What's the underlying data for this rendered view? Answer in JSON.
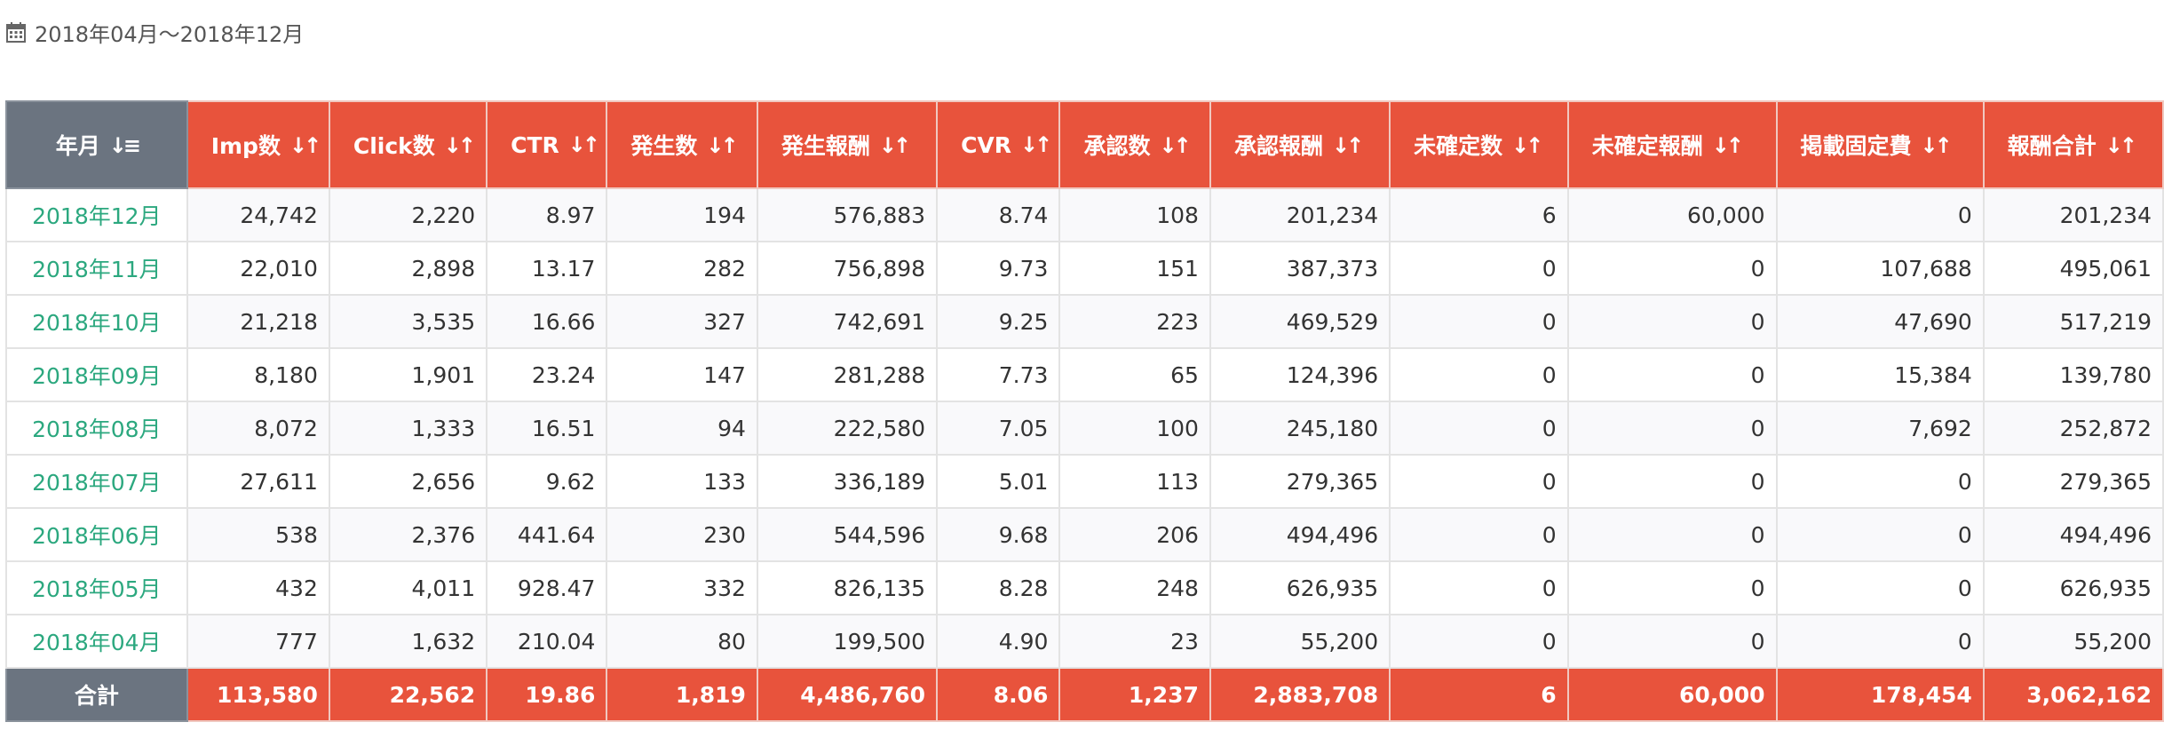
{
  "period": {
    "icon": "calendar-icon",
    "label": "2018年04月～2018年12月"
  },
  "table": {
    "headers": [
      {
        "label": "年月",
        "sort_icon": "sort-desc-icon"
      },
      {
        "label": "Imp数",
        "sort_icon": "sort-icon"
      },
      {
        "label": "Click数",
        "sort_icon": "sort-icon"
      },
      {
        "label": "CTR",
        "sort_icon": "sort-icon"
      },
      {
        "label": "発生数",
        "sort_icon": "sort-icon"
      },
      {
        "label": "発生報酬",
        "sort_icon": "sort-icon"
      },
      {
        "label": "CVR",
        "sort_icon": "sort-icon"
      },
      {
        "label": "承認数",
        "sort_icon": "sort-icon"
      },
      {
        "label": "承認報酬",
        "sort_icon": "sort-icon"
      },
      {
        "label": "未確定数",
        "sort_icon": "sort-icon"
      },
      {
        "label": "未確定報酬",
        "sort_icon": "sort-icon"
      },
      {
        "label": "掲載固定費",
        "sort_icon": "sort-icon"
      },
      {
        "label": "報酬合計",
        "sort_icon": "sort-icon"
      }
    ],
    "rows": [
      [
        "2018年12月",
        "24,742",
        "2,220",
        "8.97",
        "194",
        "576,883",
        "8.74",
        "108",
        "201,234",
        "6",
        "60,000",
        "0",
        "201,234"
      ],
      [
        "2018年11月",
        "22,010",
        "2,898",
        "13.17",
        "282",
        "756,898",
        "9.73",
        "151",
        "387,373",
        "0",
        "0",
        "107,688",
        "495,061"
      ],
      [
        "2018年10月",
        "21,218",
        "3,535",
        "16.66",
        "327",
        "742,691",
        "9.25",
        "223",
        "469,529",
        "0",
        "0",
        "47,690",
        "517,219"
      ],
      [
        "2018年09月",
        "8,180",
        "1,901",
        "23.24",
        "147",
        "281,288",
        "7.73",
        "65",
        "124,396",
        "0",
        "0",
        "15,384",
        "139,780"
      ],
      [
        "2018年08月",
        "8,072",
        "1,333",
        "16.51",
        "94",
        "222,580",
        "7.05",
        "100",
        "245,180",
        "0",
        "0",
        "7,692",
        "252,872"
      ],
      [
        "2018年07月",
        "27,611",
        "2,656",
        "9.62",
        "133",
        "336,189",
        "5.01",
        "113",
        "279,365",
        "0",
        "0",
        "0",
        "279,365"
      ],
      [
        "2018年06月",
        "538",
        "2,376",
        "441.64",
        "230",
        "544,596",
        "9.68",
        "206",
        "494,496",
        "0",
        "0",
        "0",
        "494,496"
      ],
      [
        "2018年05月",
        "432",
        "4,011",
        "928.47",
        "332",
        "826,135",
        "8.28",
        "248",
        "626,935",
        "0",
        "0",
        "0",
        "626,935"
      ],
      [
        "2018年04月",
        "777",
        "1,632",
        "210.04",
        "80",
        "199,500",
        "4.90",
        "23",
        "55,200",
        "0",
        "0",
        "0",
        "55,200"
      ]
    ],
    "totals": [
      "合計",
      "113,580",
      "22,562",
      "19.86",
      "1,819",
      "4,486,760",
      "8.06",
      "1,237",
      "2,883,708",
      "6",
      "60,000",
      "178,454",
      "3,062,162"
    ]
  },
  "colors": {
    "header_accent": "#e8533c",
    "header_dark": "#6b7480",
    "link_green": "#2ca87f"
  }
}
